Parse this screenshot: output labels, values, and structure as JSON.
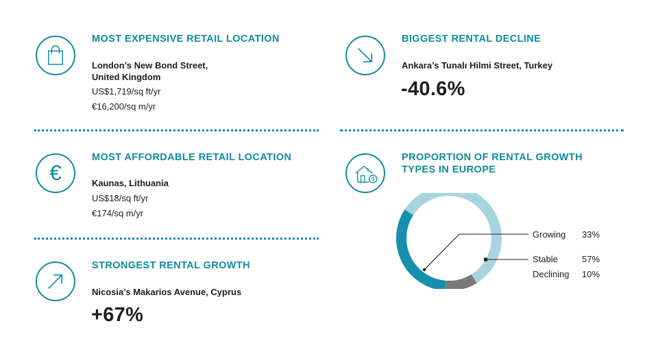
{
  "colors": {
    "accent": "#0f8ba0",
    "growing": "#1591ad",
    "stable": "#a7d5de",
    "declining": "#7a7a7a",
    "text": "#1d1d1b"
  },
  "most_expensive": {
    "icon": "shopping-bag-icon",
    "heading": "MOST EXPENSIVE RETAIL LOCATION",
    "name_line1": "London’s New Bond Street,",
    "name_line2": "United Kingdom",
    "usd": "US$1,719/sq ft/yr",
    "eur": "€16,200/sq m/yr"
  },
  "biggest_decline": {
    "icon": "arrow-down-right-icon",
    "heading": "BIGGEST RENTAL DECLINE",
    "name": "Ankara’s Tunalı Hilmi Street, Turkey",
    "value": "-40.6%"
  },
  "most_affordable": {
    "icon": "euro-icon",
    "heading": "MOST AFFORDABLE RETAIL LOCATION",
    "name": "Kaunas, Lithuania",
    "usd": "US$18/sq ft/yr",
    "eur": "€174/sq m/yr"
  },
  "proportion": {
    "icon": "house-dollar-icon",
    "heading_line1": "PROPORTION OF RENTAL GROWTH",
    "heading_line2": "TYPES IN EUROPE"
  },
  "strongest_growth": {
    "icon": "arrow-up-right-icon",
    "heading": "STRONGEST RENTAL GROWTH",
    "name": "Nicosia’s Makarios Avenue, Cyprus",
    "value": "+67%"
  },
  "chart_data": {
    "type": "pie",
    "categories": [
      "Growing",
      "Stable",
      "Declining"
    ],
    "labels": [
      "33%",
      "57%",
      "10%"
    ],
    "values": [
      33,
      57,
      10
    ]
  }
}
